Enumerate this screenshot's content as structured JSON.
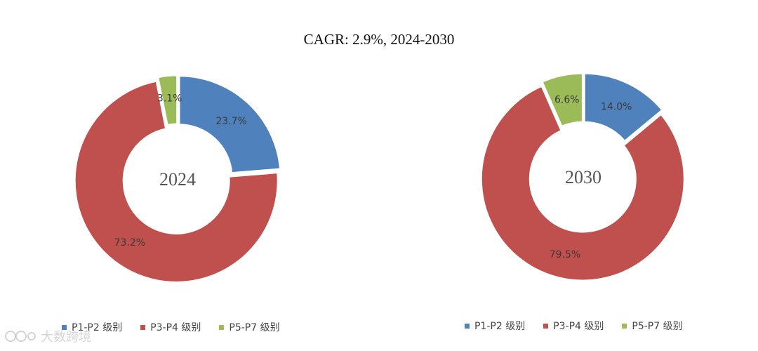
{
  "title": "CAGR:   2.9%, 2024-2030",
  "watermark": "大数跨境",
  "chart_data": [
    {
      "type": "pie",
      "title": "",
      "center_label": "2024",
      "categories": [
        "P1-P2 级别",
        "P3-P4 级别",
        "P5-P7 级别"
      ],
      "values": [
        23.7,
        73.2,
        3.1
      ],
      "labels": [
        "23.7%",
        "73.2%",
        "3.1%"
      ],
      "colors": [
        "#4F81BD",
        "#C0504D",
        "#9BBB59"
      ],
      "legend": "bottom"
    },
    {
      "type": "pie",
      "title": "",
      "center_label": "2030",
      "categories": [
        "P1-P2 级别",
        "P3-P4 级别",
        "P5-P7 级别"
      ],
      "values": [
        14.0,
        79.5,
        6.6
      ],
      "labels": [
        "14.0%",
        "79.5%",
        "6.6%"
      ],
      "colors": [
        "#4F81BD",
        "#C0504D",
        "#9BBB59"
      ],
      "legend": "bottom"
    }
  ]
}
